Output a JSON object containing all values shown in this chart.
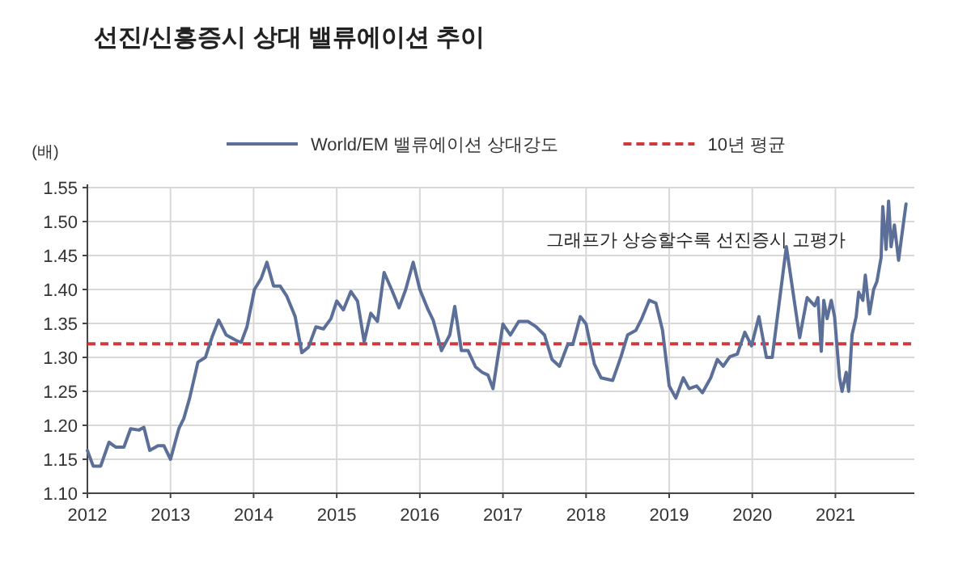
{
  "chart_data": {
    "type": "line",
    "title": "선진/신흥증시 상대 밸류에이션 추이",
    "ylabel": "(배)",
    "annotations": [
      "그래프가 상승할수록 선진증시 고평가"
    ],
    "xlim": [
      2012,
      2021.95
    ],
    "xticks": [
      2012,
      2013,
      2014,
      2015,
      2016,
      2017,
      2018,
      2019,
      2020,
      2021
    ],
    "ylim": [
      1.1,
      1.55
    ],
    "yticks": [
      {
        "value": 1.1,
        "label": "1.10"
      },
      {
        "value": 1.15,
        "label": "1.15"
      },
      {
        "value": 1.2,
        "label": "1.20"
      },
      {
        "value": 1.25,
        "label": "1.25"
      },
      {
        "value": 1.3,
        "label": "1.30"
      },
      {
        "value": 1.35,
        "label": "1.35"
      },
      {
        "value": 1.4,
        "label": "1.40"
      },
      {
        "value": 1.45,
        "label": "1.45"
      },
      {
        "value": 1.5,
        "label": "1.50"
      },
      {
        "value": 1.55,
        "label": "1.55"
      }
    ],
    "grid": true,
    "legend": "top",
    "marker": "none",
    "line_style": "solid",
    "ref_lines": [
      {
        "axis": "y",
        "value": 1.32,
        "label": "10년 평균",
        "color": "#d0393e",
        "line_style": "dashed"
      }
    ],
    "series": [
      {
        "name": "World/EM 밸류에이션 상대강도",
        "color": "#5b6f98",
        "x": [
          2012.0,
          2012.07,
          2012.16,
          2012.26,
          2012.34,
          2012.44,
          2012.52,
          2012.62,
          2012.68,
          2012.75,
          2012.85,
          2012.92,
          2013.0,
          2013.1,
          2013.16,
          2013.23,
          2013.33,
          2013.42,
          2013.5,
          2013.58,
          2013.67,
          2013.79,
          2013.85,
          2013.92,
          2014.01,
          2014.09,
          2014.16,
          2014.24,
          2014.32,
          2014.4,
          2014.5,
          2014.58,
          2014.66,
          2014.75,
          2014.84,
          2014.93,
          2015.0,
          2015.08,
          2015.17,
          2015.25,
          2015.33,
          2015.41,
          2015.49,
          2015.57,
          2015.66,
          2015.75,
          2015.83,
          2015.92,
          2016.0,
          2016.1,
          2016.16,
          2016.26,
          2016.36,
          2016.42,
          2016.5,
          2016.58,
          2016.67,
          2016.75,
          2016.82,
          2016.88,
          2017.0,
          2017.09,
          2017.19,
          2017.3,
          2017.4,
          2017.5,
          2017.59,
          2017.68,
          2017.78,
          2017.84,
          2017.93,
          2018.0,
          2018.1,
          2018.18,
          2018.32,
          2018.42,
          2018.5,
          2018.6,
          2018.67,
          2018.76,
          2018.84,
          2018.92,
          2019.0,
          2019.08,
          2019.17,
          2019.24,
          2019.33,
          2019.4,
          2019.5,
          2019.58,
          2019.65,
          2019.73,
          2019.82,
          2019.91,
          2019.99,
          2020.08,
          2020.17,
          2020.24,
          2020.41,
          2020.57,
          2020.66,
          2020.75,
          2020.79,
          2020.83,
          2020.86,
          2020.9,
          2020.95,
          2020.99,
          2021.05,
          2021.08,
          2021.13,
          2021.16,
          2021.2,
          2021.25,
          2021.28,
          2021.33,
          2021.36,
          2021.41,
          2021.46,
          2021.5,
          2021.55,
          2021.57,
          2021.61,
          2021.64,
          2021.67,
          2021.71,
          2021.76,
          2021.79,
          2021.85
        ],
        "values": [
          1.163,
          1.14,
          1.14,
          1.175,
          1.168,
          1.168,
          1.195,
          1.193,
          1.197,
          1.163,
          1.17,
          1.17,
          1.15,
          1.195,
          1.21,
          1.24,
          1.293,
          1.3,
          1.33,
          1.355,
          1.333,
          1.325,
          1.322,
          1.345,
          1.4,
          1.416,
          1.44,
          1.405,
          1.405,
          1.39,
          1.36,
          1.307,
          1.315,
          1.345,
          1.342,
          1.357,
          1.383,
          1.37,
          1.397,
          1.383,
          1.323,
          1.365,
          1.353,
          1.425,
          1.4,
          1.373,
          1.4,
          1.44,
          1.4,
          1.37,
          1.355,
          1.31,
          1.333,
          1.375,
          1.31,
          1.31,
          1.286,
          1.278,
          1.274,
          1.254,
          1.349,
          1.333,
          1.353,
          1.353,
          1.345,
          1.333,
          1.297,
          1.287,
          1.319,
          1.319,
          1.36,
          1.349,
          1.29,
          1.27,
          1.266,
          1.301,
          1.333,
          1.34,
          1.357,
          1.384,
          1.38,
          1.34,
          1.258,
          1.24,
          1.27,
          1.254,
          1.258,
          1.248,
          1.27,
          1.297,
          1.287,
          1.301,
          1.305,
          1.337,
          1.317,
          1.36,
          1.3,
          1.3,
          1.463,
          1.329,
          1.388,
          1.376,
          1.388,
          1.309,
          1.384,
          1.357,
          1.384,
          1.36,
          1.27,
          1.25,
          1.278,
          1.25,
          1.333,
          1.36,
          1.396,
          1.384,
          1.421,
          1.364,
          1.4,
          1.412,
          1.447,
          1.522,
          1.459,
          1.53,
          1.463,
          1.495,
          1.443,
          1.471,
          1.526
        ]
      }
    ]
  }
}
